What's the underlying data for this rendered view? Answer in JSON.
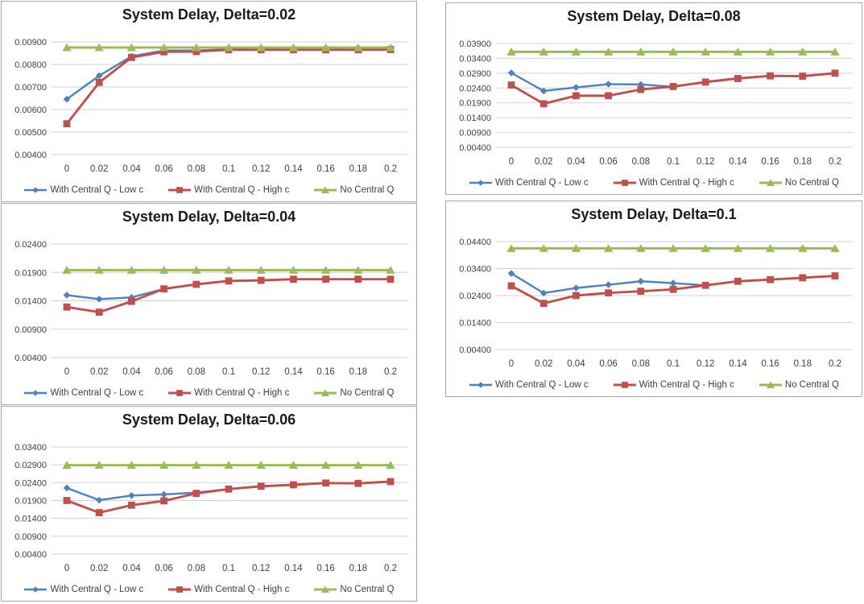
{
  "page": {
    "background": "#ffffff"
  },
  "colors": {
    "grid": "#d2d2d2",
    "panel_border": "#a6a6a6",
    "tick_text": "#3f3f3f",
    "title_text": "#1a1a1a",
    "series_low_c": "#4f81bd",
    "series_high_c": "#c0504d",
    "series_no_q": "#9bbb59"
  },
  "chart_data": [
    {
      "type": "line",
      "title": "System Delay, Delta=0.02",
      "delta": 0.02,
      "x": [
        0,
        0.02,
        0.04,
        0.06,
        0.08,
        0.1,
        0.12,
        0.14,
        0.16,
        0.18,
        0.2
      ],
      "x_label_ticks": [
        "0",
        "0.02",
        "0.04",
        "0.06",
        "0.08",
        "0.1",
        "0.12",
        "0.14",
        "0.16",
        "0.18",
        "0.2"
      ],
      "y_ticks": [
        "0.00400",
        "0.00500",
        "0.00600",
        "0.00700",
        "0.00800",
        "0.00900"
      ],
      "ylim": [
        0.004,
        0.009
      ],
      "grid": true,
      "legend_position": "bottom",
      "series": [
        {
          "name": "With Central Q - Low c",
          "color": "#4f81bd",
          "marker": "diamond",
          "values": [
            0.00646,
            0.0075,
            0.00836,
            0.00862,
            0.00862,
            0.00867,
            0.00867,
            0.00867,
            0.00867,
            0.00867,
            0.00867
          ]
        },
        {
          "name": "With Central Q - High c",
          "color": "#c0504d",
          "marker": "square",
          "values": [
            0.00537,
            0.0072,
            0.00831,
            0.00856,
            0.00857,
            0.00865,
            0.00865,
            0.00865,
            0.00865,
            0.00865,
            0.00866
          ]
        },
        {
          "name": "No Central Q",
          "color": "#9bbb59",
          "marker": "triangle",
          "values": [
            0.00875,
            0.00875,
            0.00875,
            0.00875,
            0.00875,
            0.00875,
            0.00875,
            0.00875,
            0.00875,
            0.00875,
            0.00875
          ]
        }
      ]
    },
    {
      "type": "line",
      "title": "System Delay, Delta=0.08",
      "delta": 0.08,
      "x": [
        0,
        0.02,
        0.04,
        0.06,
        0.08,
        0.1,
        0.12,
        0.14,
        0.16,
        0.18,
        0.2
      ],
      "x_label_ticks": [
        "0",
        "0.02",
        "0.04",
        "0.06",
        "0.08",
        "0.1",
        "0.12",
        "0.14",
        "0.16",
        "0.18",
        "0.2"
      ],
      "y_ticks": [
        "0.00400",
        "0.00900",
        "0.01400",
        "0.01900",
        "0.02400",
        "0.02900",
        "0.03400",
        "0.03900"
      ],
      "ylim": [
        0.004,
        0.039
      ],
      "grid": true,
      "legend_position": "bottom",
      "series": [
        {
          "name": "With Central Q - Low c",
          "color": "#4f81bd",
          "marker": "diamond",
          "values": [
            0.0291,
            0.023,
            0.0242,
            0.0253,
            0.0252,
            0.0244,
            0.0261,
            0.0273,
            0.0281,
            0.028,
            0.0289
          ]
        },
        {
          "name": "With Central Q - High c",
          "color": "#c0504d",
          "marker": "square",
          "values": [
            0.025,
            0.0187,
            0.0214,
            0.0214,
            0.0235,
            0.0245,
            0.026,
            0.0272,
            0.0281,
            0.028,
            0.029
          ]
        },
        {
          "name": "No Central Q",
          "color": "#9bbb59",
          "marker": "triangle",
          "values": [
            0.0362,
            0.0362,
            0.0362,
            0.0362,
            0.0362,
            0.0362,
            0.0362,
            0.0362,
            0.0362,
            0.0362,
            0.0362
          ]
        }
      ]
    },
    {
      "type": "line",
      "title": "System Delay, Delta=0.04",
      "delta": 0.04,
      "x": [
        0,
        0.02,
        0.04,
        0.06,
        0.08,
        0.1,
        0.12,
        0.14,
        0.16,
        0.18,
        0.2
      ],
      "x_label_ticks": [
        "0",
        "0.02",
        "0.04",
        "0.06",
        "0.08",
        "0.1",
        "0.12",
        "0.14",
        "0.16",
        "0.18",
        "0.2"
      ],
      "y_ticks": [
        "0.00400",
        "0.00900",
        "0.01400",
        "0.01900",
        "0.02400"
      ],
      "ylim": [
        0.004,
        0.024
      ],
      "grid": true,
      "legend_position": "bottom",
      "series": [
        {
          "name": "With Central Q - Low c",
          "color": "#4f81bd",
          "marker": "diamond",
          "values": [
            0.015,
            0.0143,
            0.0146,
            0.0161,
            0.0169,
            0.0175,
            0.0176,
            0.0178,
            0.0178,
            0.0178,
            0.0178
          ]
        },
        {
          "name": "With Central Q - High c",
          "color": "#c0504d",
          "marker": "square",
          "values": [
            0.0129,
            0.012,
            0.0139,
            0.0161,
            0.0169,
            0.0175,
            0.0176,
            0.0178,
            0.0178,
            0.0178,
            0.0178
          ]
        },
        {
          "name": "No Central Q",
          "color": "#9bbb59",
          "marker": "triangle",
          "values": [
            0.0194,
            0.0194,
            0.0194,
            0.0194,
            0.0194,
            0.0194,
            0.0194,
            0.0194,
            0.0194,
            0.0194,
            0.0194
          ]
        }
      ]
    },
    {
      "type": "line",
      "title": "System Delay, Delta=0.1",
      "delta": 0.1,
      "x": [
        0,
        0.02,
        0.04,
        0.06,
        0.08,
        0.1,
        0.12,
        0.14,
        0.16,
        0.18,
        0.2
      ],
      "x_label_ticks": [
        "0",
        "0.02",
        "0.04",
        "0.06",
        "0.08",
        "0.1",
        "0.12",
        "0.14",
        "0.16",
        "0.18",
        "0.2"
      ],
      "y_ticks": [
        "0.00400",
        "0.01400",
        "0.02400",
        "0.03400",
        "0.04400"
      ],
      "ylim": [
        0.004,
        0.044
      ],
      "grid": true,
      "legend_position": "bottom",
      "series": [
        {
          "name": "With Central Q - Low c",
          "color": "#4f81bd",
          "marker": "diamond",
          "values": [
            0.0322,
            0.0249,
            0.0268,
            0.028,
            0.0293,
            0.0286,
            0.0278,
            0.0293,
            0.0299,
            0.0306,
            0.0313
          ]
        },
        {
          "name": "With Central Q - High c",
          "color": "#c0504d",
          "marker": "square",
          "values": [
            0.0276,
            0.0211,
            0.024,
            0.025,
            0.0256,
            0.0263,
            0.0278,
            0.0293,
            0.0299,
            0.0306,
            0.0313
          ]
        },
        {
          "name": "No Central Q",
          "color": "#9bbb59",
          "marker": "triangle",
          "values": [
            0.0415,
            0.0415,
            0.0415,
            0.0415,
            0.0415,
            0.0415,
            0.0415,
            0.0415,
            0.0415,
            0.0415,
            0.0415
          ]
        }
      ]
    },
    {
      "type": "line",
      "title": "System Delay, Delta=0.06",
      "delta": 0.06,
      "x": [
        0,
        0.02,
        0.04,
        0.06,
        0.08,
        0.1,
        0.12,
        0.14,
        0.16,
        0.18,
        0.2
      ],
      "x_label_ticks": [
        "0",
        "0.02",
        "0.04",
        "0.06",
        "0.08",
        "0.1",
        "0.12",
        "0.14",
        "0.16",
        "0.18",
        "0.2"
      ],
      "y_ticks": [
        "0.00400",
        "0.00900",
        "0.01400",
        "0.01900",
        "0.02400",
        "0.02900",
        "0.03400"
      ],
      "ylim": [
        0.004,
        0.034
      ],
      "grid": true,
      "legend_position": "bottom",
      "series": [
        {
          "name": "With Central Q - Low c",
          "color": "#4f81bd",
          "marker": "diamond",
          "values": [
            0.0225,
            0.0191,
            0.0204,
            0.0207,
            0.0212,
            0.0222,
            0.023,
            0.0234,
            0.0239,
            0.0238,
            0.0243
          ]
        },
        {
          "name": "With Central Q - High c",
          "color": "#c0504d",
          "marker": "square",
          "values": [
            0.019,
            0.0156,
            0.0177,
            0.0189,
            0.021,
            0.0222,
            0.023,
            0.0234,
            0.0239,
            0.0238,
            0.0243
          ]
        },
        {
          "name": "No Central Q",
          "color": "#9bbb59",
          "marker": "triangle",
          "values": [
            0.0289,
            0.0289,
            0.0289,
            0.0289,
            0.0289,
            0.0289,
            0.0289,
            0.0289,
            0.0289,
            0.0289,
            0.0289
          ]
        }
      ]
    }
  ]
}
